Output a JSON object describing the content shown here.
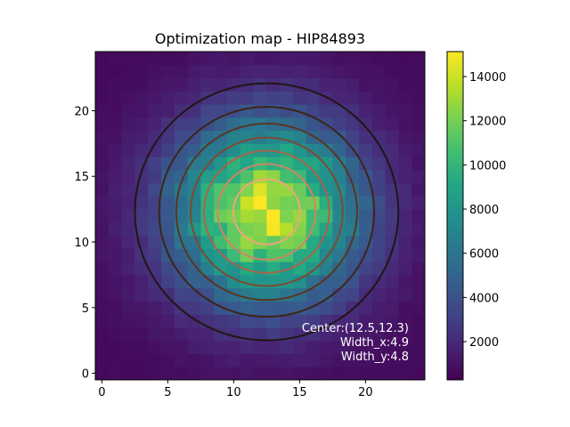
{
  "chart_data": {
    "type": "heatmap",
    "title": "Optimization map - HIP84893",
    "xlabel": "",
    "ylabel": "",
    "grid_size": [
      25,
      25
    ],
    "xlim": [
      -0.5,
      24.5
    ],
    "ylim": [
      -0.5,
      24.5
    ],
    "x_ticks": [
      "0",
      "5",
      "10",
      "15",
      "20"
    ],
    "y_ticks": [
      "0",
      "5",
      "10",
      "15",
      "20"
    ],
    "colormap": "viridis",
    "color_range": [
      270,
      15130
    ],
    "colorbar_ticks": [
      "2000",
      "4000",
      "6000",
      "8000",
      "10000",
      "12000",
      "14000"
    ],
    "model": {
      "kind": "gaussian-with-noise",
      "center": [
        12.5,
        12.3
      ],
      "sigma_x": 4.9,
      "sigma_y": 4.8,
      "amplitude": 13300,
      "offset": 600,
      "noise_fraction": 0.12,
      "noise_seed": 84893
    },
    "contour_levels_fraction": [
      0.125,
      0.25,
      0.375,
      0.5,
      0.625,
      0.75,
      0.875
    ],
    "contour_colors": [
      "#231512",
      "#3d2518",
      "#5a3522",
      "#7c4a32",
      "#a8644a",
      "#d08464",
      "#f0a57a"
    ],
    "annotation": {
      "center": "Center:(12.5,12.3)",
      "width_x": "Width_x:4.9",
      "width_y": "Width_y:4.8"
    }
  }
}
